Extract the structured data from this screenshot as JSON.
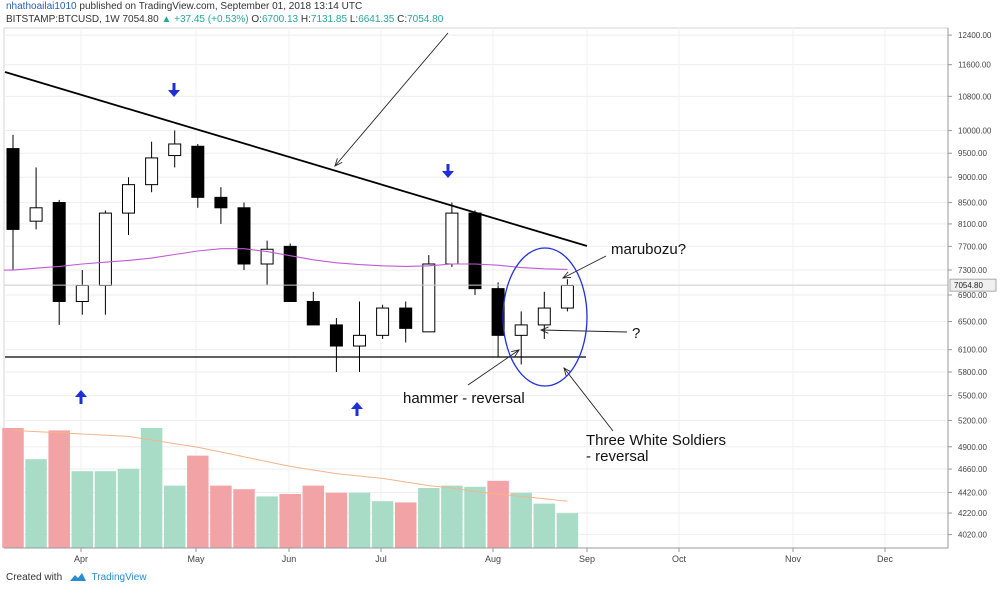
{
  "header": {
    "author": "nhathoailai1010",
    "published": "published on TradingView.com, September 01, 2018 13:14 UTC",
    "symbol": "BITSTAMP:BTCUSD, 1W",
    "last": "7054.80",
    "change": "+37.45 (+0.53%)",
    "o_label": "O:",
    "o_value": "6700.13",
    "h_label": "H:",
    "h_value": "7131.85",
    "l_label": "L:",
    "l_value": "6641.35",
    "c_label": "C:",
    "c_value": "7054.80"
  },
  "footer": {
    "created_with": "Created with",
    "brand": "TradingView"
  },
  "colors": {
    "up_body": "#ffffff",
    "down_body": "#000000",
    "wick": "#000000",
    "vol_up": "#a8dcc6",
    "vol_down": "#f2a3a6",
    "ma_price": "#c05ad6",
    "ma_volume": "#f4b48a",
    "annotation": "#1f2fd8",
    "price_tag": "#f0f0f0"
  },
  "chart_data": {
    "type": "candlestick",
    "interval": "1W",
    "y_scale": "log",
    "ylim": [
      3900,
      12600
    ],
    "y_ticks": [
      4020,
      4220,
      4420,
      4660,
      4900,
      5200,
      5500,
      5800,
      6100,
      6500,
      6900,
      7300,
      7700,
      8100,
      8500,
      9000,
      9500,
      10000,
      10800,
      11600,
      12400
    ],
    "y_tick_labels": [
      "4020.00",
      "4220.00",
      "4420.00",
      "4660.00",
      "4900.00",
      "5200.00",
      "5500.00",
      "5800.00",
      "6100.00",
      "6500.00",
      "6900.00",
      "7300.00",
      "7700.00",
      "8100.00",
      "8500.00",
      "9000.00",
      "9500.00",
      "10000.00",
      "10800.00",
      "11600.00",
      "12400.00"
    ],
    "x_ticks": [
      "Apr",
      "May",
      "Jun",
      "Jul",
      "Aug",
      "Sep",
      "Oct",
      "Nov",
      "Dec"
    ],
    "last_price_label": "7054.80",
    "candles": [
      {
        "o": 9600,
        "h": 9900,
        "l": 7300,
        "c": 8000
      },
      {
        "o": 8150,
        "h": 9200,
        "l": 8000,
        "c": 8400
      },
      {
        "o": 8500,
        "h": 8550,
        "l": 6450,
        "c": 6800
      },
      {
        "o": 6800,
        "h": 7300,
        "l": 6600,
        "c": 7050
      },
      {
        "o": 7050,
        "h": 8350,
        "l": 6600,
        "c": 8300
      },
      {
        "o": 8300,
        "h": 9000,
        "l": 7900,
        "c": 8850
      },
      {
        "o": 8850,
        "h": 9750,
        "l": 8700,
        "c": 9400
      },
      {
        "o": 9450,
        "h": 10000,
        "l": 9200,
        "c": 9700
      },
      {
        "o": 9650,
        "h": 9700,
        "l": 8400,
        "c": 8600
      },
      {
        "o": 8600,
        "h": 8800,
        "l": 8100,
        "c": 8400
      },
      {
        "o": 8400,
        "h": 8500,
        "l": 7300,
        "c": 7400
      },
      {
        "o": 7400,
        "h": 7800,
        "l": 7050,
        "c": 7650
      },
      {
        "o": 7700,
        "h": 7750,
        "l": 6800,
        "c": 6800
      },
      {
        "o": 6800,
        "h": 6950,
        "l": 6450,
        "c": 6450
      },
      {
        "o": 6450,
        "h": 6550,
        "l": 5800,
        "c": 6150
      },
      {
        "o": 6150,
        "h": 6800,
        "l": 5800,
        "c": 6300
      },
      {
        "o": 6300,
        "h": 6750,
        "l": 6250,
        "c": 6700
      },
      {
        "o": 6700,
        "h": 6800,
        "l": 6200,
        "c": 6400
      },
      {
        "o": 6350,
        "h": 7550,
        "l": 6350,
        "c": 7400
      },
      {
        "o": 7400,
        "h": 8500,
        "l": 7350,
        "c": 8300
      },
      {
        "o": 8300,
        "h": 8350,
        "l": 6900,
        "c": 7000
      },
      {
        "o": 7000,
        "h": 7100,
        "l": 6000,
        "c": 6300
      },
      {
        "o": 6300,
        "h": 6650,
        "l": 5900,
        "c": 6450
      },
      {
        "o": 6450,
        "h": 6950,
        "l": 6250,
        "c": 6700
      },
      {
        "o": 6700,
        "h": 7150,
        "l": 6650,
        "c": 7050
      }
    ],
    "volume": [
      {
        "v": 1.0,
        "dir": "down"
      },
      {
        "v": 0.74,
        "dir": "up"
      },
      {
        "v": 0.98,
        "dir": "down"
      },
      {
        "v": 0.64,
        "dir": "up"
      },
      {
        "v": 0.64,
        "dir": "up"
      },
      {
        "v": 0.66,
        "dir": "up"
      },
      {
        "v": 1.0,
        "dir": "up"
      },
      {
        "v": 0.52,
        "dir": "up"
      },
      {
        "v": 0.77,
        "dir": "down"
      },
      {
        "v": 0.52,
        "dir": "down"
      },
      {
        "v": 0.49,
        "dir": "down"
      },
      {
        "v": 0.43,
        "dir": "up"
      },
      {
        "v": 0.45,
        "dir": "down"
      },
      {
        "v": 0.52,
        "dir": "down"
      },
      {
        "v": 0.46,
        "dir": "down"
      },
      {
        "v": 0.46,
        "dir": "up"
      },
      {
        "v": 0.39,
        "dir": "up"
      },
      {
        "v": 0.38,
        "dir": "down"
      },
      {
        "v": 0.5,
        "dir": "up"
      },
      {
        "v": 0.52,
        "dir": "up"
      },
      {
        "v": 0.51,
        "dir": "up"
      },
      {
        "v": 0.56,
        "dir": "down"
      },
      {
        "v": 0.46,
        "dir": "up"
      },
      {
        "v": 0.37,
        "dir": "up"
      },
      {
        "v": 0.29,
        "dir": "up"
      }
    ],
    "volume_ma": [
      0.98,
      0.97,
      0.96,
      0.95,
      0.94,
      0.93,
      0.9,
      0.87,
      0.84,
      0.8,
      0.76,
      0.72,
      0.68,
      0.65,
      0.62,
      0.6,
      0.58,
      0.55,
      0.52,
      0.5,
      0.47,
      0.45,
      0.43,
      0.41,
      0.39
    ],
    "price_ma": [
      7300,
      7330,
      7360,
      7400,
      7430,
      7460,
      7500,
      7560,
      7620,
      7660,
      7660,
      7610,
      7540,
      7470,
      7420,
      7390,
      7370,
      7360,
      7370,
      7400,
      7400,
      7380,
      7340,
      7320,
      7310
    ],
    "annotations": {
      "marubozu": "marubozu?",
      "question": "?",
      "hammer": "hammer - reversal",
      "soldiers_line1": "Three White Soldiers",
      "soldiers_line2": "- reversal"
    },
    "support_level": 6000
  }
}
